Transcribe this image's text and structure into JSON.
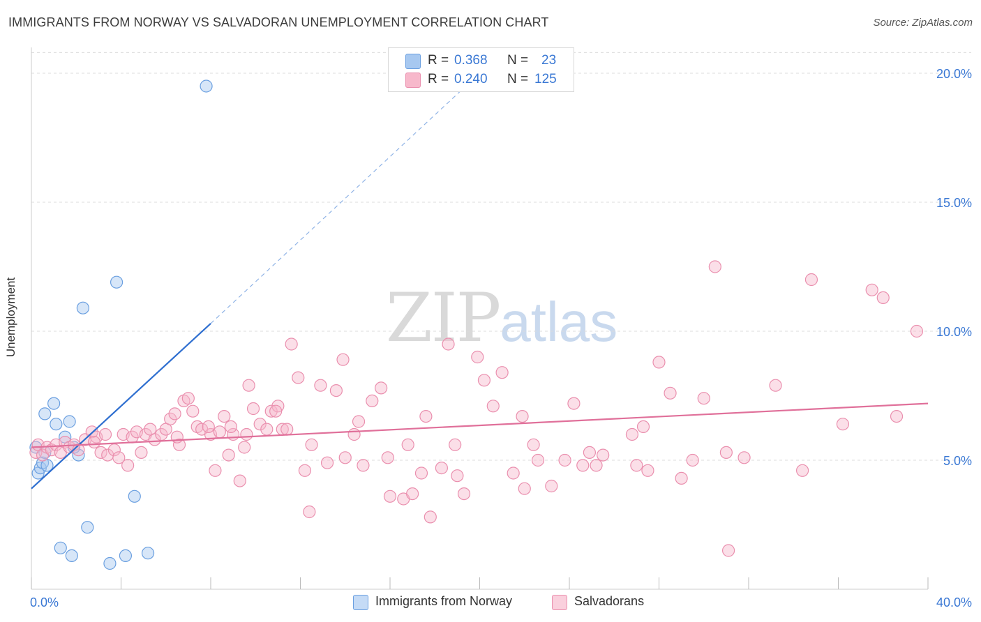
{
  "title": "IMMIGRANTS FROM NORWAY VS SALVADORAN UNEMPLOYMENT CORRELATION CHART",
  "source": "Source: ZipAtlas.com",
  "watermark": {
    "zip": "ZIP",
    "atlas": "atlas"
  },
  "legend": {
    "rows": [
      {
        "r_label": "R =",
        "r_value": "0.368",
        "n_label": "N =",
        "n_value": "23",
        "color": "#a7c8f0"
      },
      {
        "r_label": "R =",
        "r_value": "0.240",
        "n_label": "N =",
        "n_value": "125",
        "color": "#f7b8cb"
      }
    ]
  },
  "chart_data": {
    "type": "scatter",
    "title": "IMMIGRANTS FROM NORWAY VS SALVADORAN UNEMPLOYMENT CORRELATION CHART",
    "xlabel": "",
    "ylabel": "Unemployment",
    "xlim": [
      0,
      40
    ],
    "ylim": [
      0,
      21
    ],
    "x_tick_labels": [
      "0.0%",
      "40.0%"
    ],
    "y_ticks": [
      5,
      10,
      15,
      20
    ],
    "y_tick_labels": [
      "5.0%",
      "10.0%",
      "15.0%",
      "20.0%"
    ],
    "grid": "horizontal dashed",
    "legend_position": "top-center and bottom",
    "series": [
      {
        "name": "Immigrants from Norway",
        "color": "#6a9fe0",
        "fill": "#a7c8f0",
        "trend_color": "#2f6fd0",
        "trend": {
          "x0": 0.0,
          "y0": 3.9,
          "x1": 8.0,
          "y1": 10.3,
          "dashed_to_x": 20.0,
          "dashed_to_y": 20.0
        },
        "points": [
          [
            0.2,
            5.5
          ],
          [
            0.3,
            4.5
          ],
          [
            0.4,
            4.7
          ],
          [
            0.5,
            4.9
          ],
          [
            0.6,
            5.3
          ],
          [
            0.7,
            4.8
          ],
          [
            0.6,
            6.8
          ],
          [
            1.0,
            7.2
          ],
          [
            1.1,
            6.4
          ],
          [
            1.5,
            5.9
          ],
          [
            1.7,
            6.5
          ],
          [
            2.1,
            5.2
          ],
          [
            2.3,
            10.9
          ],
          [
            3.8,
            11.9
          ],
          [
            7.8,
            19.5
          ],
          [
            4.6,
            3.6
          ],
          [
            2.5,
            2.4
          ],
          [
            1.3,
            1.6
          ],
          [
            1.8,
            1.3
          ],
          [
            3.5,
            1.0
          ],
          [
            4.2,
            1.3
          ],
          [
            5.2,
            1.4
          ],
          [
            1.9,
            5.5
          ]
        ]
      },
      {
        "name": "Salvadorans",
        "color": "#ea8fae",
        "fill": "#f7b8cb",
        "trend_color": "#e0709a",
        "trend": {
          "x0": 0.0,
          "y0": 5.5,
          "x1": 40.0,
          "y1": 7.2
        },
        "points": [
          [
            0.2,
            5.3
          ],
          [
            0.3,
            5.6
          ],
          [
            0.5,
            5.2
          ],
          [
            0.7,
            5.5
          ],
          [
            0.9,
            5.4
          ],
          [
            1.1,
            5.6
          ],
          [
            1.3,
            5.3
          ],
          [
            1.5,
            5.7
          ],
          [
            1.7,
            5.5
          ],
          [
            1.9,
            5.6
          ],
          [
            2.1,
            5.4
          ],
          [
            2.4,
            5.8
          ],
          [
            2.7,
            6.1
          ],
          [
            2.9,
            5.9
          ],
          [
            3.1,
            5.3
          ],
          [
            3.4,
            5.2
          ],
          [
            3.7,
            5.4
          ],
          [
            3.9,
            5.1
          ],
          [
            4.1,
            6.0
          ],
          [
            4.3,
            4.8
          ],
          [
            4.5,
            5.9
          ],
          [
            4.7,
            6.1
          ],
          [
            4.9,
            5.3
          ],
          [
            5.1,
            6.0
          ],
          [
            5.3,
            6.2
          ],
          [
            5.5,
            5.8
          ],
          [
            5.8,
            6.0
          ],
          [
            6.0,
            6.2
          ],
          [
            6.2,
            6.6
          ],
          [
            6.4,
            6.8
          ],
          [
            6.6,
            5.6
          ],
          [
            6.8,
            7.3
          ],
          [
            7.0,
            7.4
          ],
          [
            7.2,
            6.9
          ],
          [
            7.4,
            6.3
          ],
          [
            7.6,
            6.2
          ],
          [
            8.0,
            6.0
          ],
          [
            8.2,
            4.6
          ],
          [
            8.4,
            6.1
          ],
          [
            8.6,
            6.7
          ],
          [
            8.8,
            5.2
          ],
          [
            9.0,
            6.0
          ],
          [
            9.3,
            4.2
          ],
          [
            9.6,
            6.0
          ],
          [
            9.9,
            7.0
          ],
          [
            10.2,
            6.4
          ],
          [
            10.5,
            6.2
          ],
          [
            10.7,
            6.9
          ],
          [
            11.0,
            7.1
          ],
          [
            11.2,
            6.2
          ],
          [
            11.6,
            9.5
          ],
          [
            11.9,
            8.2
          ],
          [
            12.2,
            4.6
          ],
          [
            12.5,
            5.6
          ],
          [
            12.9,
            7.9
          ],
          [
            13.2,
            4.9
          ],
          [
            13.6,
            7.7
          ],
          [
            14.0,
            5.1
          ],
          [
            14.4,
            6.0
          ],
          [
            14.8,
            4.8
          ],
          [
            15.2,
            7.3
          ],
          [
            15.6,
            7.8
          ],
          [
            16.0,
            3.6
          ],
          [
            16.6,
            3.5
          ],
          [
            17.0,
            3.7
          ],
          [
            17.4,
            4.5
          ],
          [
            17.8,
            2.8
          ],
          [
            18.3,
            4.7
          ],
          [
            18.6,
            9.5
          ],
          [
            18.9,
            5.6
          ],
          [
            19.3,
            3.7
          ],
          [
            19.9,
            9.0
          ],
          [
            20.2,
            8.1
          ],
          [
            20.6,
            7.1
          ],
          [
            21.0,
            8.4
          ],
          [
            21.5,
            4.5
          ],
          [
            22.0,
            3.9
          ],
          [
            22.6,
            5.0
          ],
          [
            23.2,
            4.0
          ],
          [
            23.8,
            5.0
          ],
          [
            24.2,
            7.2
          ],
          [
            24.6,
            4.8
          ],
          [
            25.5,
            5.2
          ],
          [
            27.0,
            4.8
          ],
          [
            27.5,
            4.6
          ],
          [
            28.0,
            8.8
          ],
          [
            28.5,
            7.6
          ],
          [
            29.0,
            4.3
          ],
          [
            30.0,
            7.4
          ],
          [
            30.5,
            12.5
          ],
          [
            31.0,
            5.3
          ],
          [
            31.8,
            5.1
          ],
          [
            33.2,
            7.9
          ],
          [
            34.4,
            4.6
          ],
          [
            34.8,
            12.0
          ],
          [
            36.2,
            6.4
          ],
          [
            37.5,
            11.6
          ],
          [
            38.0,
            11.3
          ],
          [
            39.5,
            10.0
          ],
          [
            38.6,
            6.7
          ],
          [
            31.1,
            1.5
          ],
          [
            12.4,
            3.0
          ],
          [
            13.9,
            8.9
          ],
          [
            7.9,
            6.3
          ],
          [
            8.9,
            6.3
          ],
          [
            9.7,
            7.9
          ],
          [
            10.9,
            6.9
          ],
          [
            15.9,
            5.1
          ],
          [
            16.8,
            5.6
          ],
          [
            17.6,
            6.7
          ],
          [
            22.4,
            5.6
          ],
          [
            26.8,
            6.0
          ],
          [
            27.3,
            6.3
          ],
          [
            29.5,
            5.0
          ],
          [
            25.2,
            4.8
          ],
          [
            3.3,
            6.0
          ],
          [
            6.5,
            5.9
          ],
          [
            11.4,
            6.2
          ],
          [
            14.6,
            6.5
          ],
          [
            19.0,
            4.4
          ],
          [
            21.9,
            6.7
          ],
          [
            24.9,
            5.3
          ],
          [
            2.8,
            5.7
          ],
          [
            9.5,
            5.5
          ]
        ]
      }
    ]
  },
  "bottom_legend": [
    {
      "label": "Immigrants from Norway",
      "color": "#a7c8f0"
    },
    {
      "label": "Salvadorans",
      "color": "#f7b8cb"
    }
  ]
}
